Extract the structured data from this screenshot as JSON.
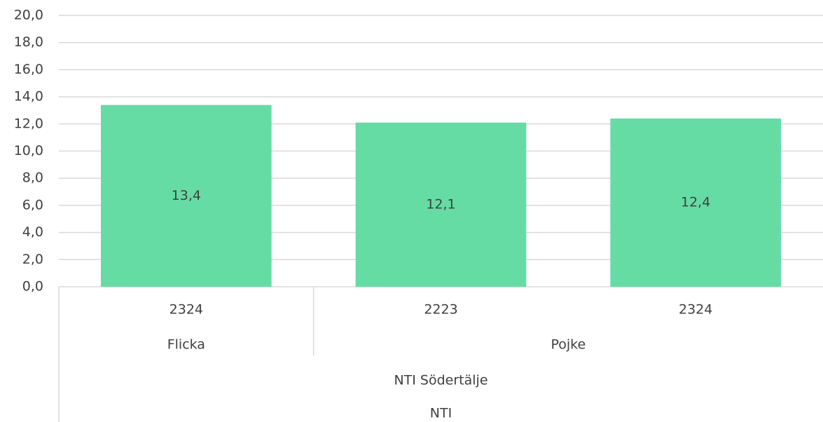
{
  "chart_data": {
    "type": "bar",
    "color": "#66dca5",
    "ylim": [
      0,
      20
    ],
    "yticks": [
      {
        "value": 0,
        "label": "0,0"
      },
      {
        "value": 2,
        "label": "2,0"
      },
      {
        "value": 4,
        "label": "4,0"
      },
      {
        "value": 6,
        "label": "6,0"
      },
      {
        "value": 8,
        "label": "8,0"
      },
      {
        "value": 10,
        "label": "10,0"
      },
      {
        "value": 12,
        "label": "12,0"
      },
      {
        "value": 14,
        "label": "14,0"
      },
      {
        "value": 16,
        "label": "16,0"
      },
      {
        "value": 18,
        "label": "18,0"
      },
      {
        "value": 20,
        "label": "20,0"
      }
    ],
    "grid": true,
    "groups": [
      {
        "label": "Flicka",
        "categories": [
          "2324"
        ],
        "values": [
          13.4
        ],
        "value_labels": [
          "13,4"
        ]
      },
      {
        "label": "Pojke",
        "categories": [
          "2223",
          "2324"
        ],
        "values": [
          12.1,
          12.4
        ],
        "value_labels": [
          "12,1",
          "12,4"
        ]
      }
    ],
    "outer_labels": [
      "NTI Södertälje",
      "NTI"
    ]
  }
}
